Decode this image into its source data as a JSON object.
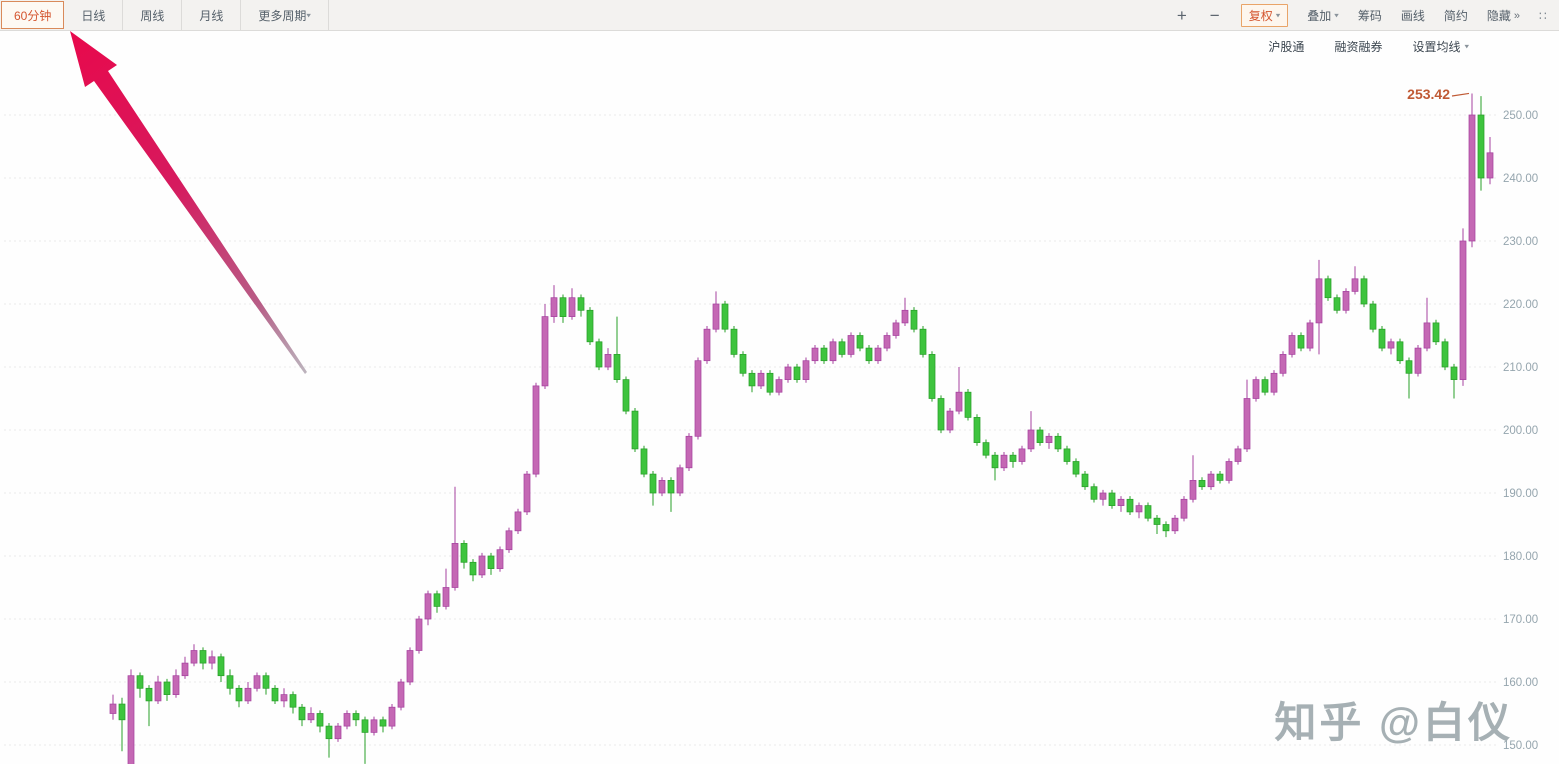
{
  "toolbar": {
    "period_tabs": [
      {
        "label": "60分钟",
        "active": true
      },
      {
        "label": "日线",
        "active": false
      },
      {
        "label": "周线",
        "active": false
      },
      {
        "label": "月线",
        "active": false
      },
      {
        "label": "更多周期",
        "active": false,
        "caret": true
      }
    ],
    "zoom_in_label": "+",
    "zoom_out_label": "−",
    "right_buttons": [
      {
        "label": "复权",
        "caret": true,
        "highlighted": true
      },
      {
        "label": "叠加",
        "caret": true
      },
      {
        "label": "筹码"
      },
      {
        "label": "画线"
      },
      {
        "label": "简约"
      },
      {
        "label": "隐藏",
        "suffix_icon": "double_arrow"
      }
    ],
    "truncated_glyph": "∷"
  },
  "subbar": {
    "links": [
      {
        "label": "沪股通"
      },
      {
        "label": "融资融券"
      },
      {
        "label": "设置均线",
        "caret": true
      }
    ]
  },
  "icons": {
    "dropdown_caret": "▾",
    "double_arrow": "»"
  },
  "watermark": "知乎 @白仪",
  "annotation": {
    "type": "arrow",
    "points_to": "60分钟",
    "color": "#e8094c"
  },
  "chart_data": {
    "type": "candlestick",
    "period": "60分钟",
    "latest_price_label": "253.42",
    "latest_price_value": 253.42,
    "legend_position": "none",
    "y_axis": {
      "side": "right",
      "grid": true,
      "tick_labels": [
        "250.00",
        "240.00",
        "230.00",
        "220.00",
        "210.00",
        "200.00",
        "190.00",
        "180.00",
        "170.00",
        "160.00",
        "150.00"
      ],
      "tick_values": [
        250,
        240,
        230,
        220,
        210,
        200,
        190,
        180,
        170,
        160,
        150
      ],
      "range": [
        148,
        255.8
      ]
    },
    "colors": {
      "up_fill": "#c468b4",
      "up_stroke": "#a743a0",
      "down_fill": "#3ec43e",
      "down_stroke": "#28a028",
      "grid": "#ebebeb",
      "axis_text": "#95a5ae",
      "price_label": "#c05a35",
      "accent_orange": "#d4552f"
    },
    "candles": [
      [
        155,
        158,
        154,
        156.5
      ],
      [
        156.5,
        157.5,
        149,
        154
      ],
      [
        145,
        162,
        143.5,
        161
      ],
      [
        161,
        161.5,
        157.5,
        159
      ],
      [
        159,
        159.5,
        153,
        157
      ],
      [
        157,
        161,
        156.5,
        160
      ],
      [
        160,
        160.5,
        157,
        158
      ],
      [
        158,
        162,
        157.5,
        161
      ],
      [
        161,
        164,
        160.5,
        163
      ],
      [
        163,
        166,
        162.5,
        165
      ],
      [
        165,
        165.5,
        162,
        163
      ],
      [
        163,
        165,
        162,
        164
      ],
      [
        164,
        164.5,
        160,
        161
      ],
      [
        161,
        162,
        158,
        159
      ],
      [
        159,
        159.5,
        156,
        157
      ],
      [
        157,
        160,
        156.5,
        159
      ],
      [
        159,
        161.5,
        158.5,
        161
      ],
      [
        161,
        161.5,
        158,
        159
      ],
      [
        159,
        159.5,
        156.5,
        157
      ],
      [
        157,
        159,
        156,
        158
      ],
      [
        158,
        158.5,
        155,
        156
      ],
      [
        156,
        156.5,
        153,
        154
      ],
      [
        154,
        156,
        153.5,
        155
      ],
      [
        155,
        155.5,
        152,
        153
      ],
      [
        153,
        153.5,
        148,
        151
      ],
      [
        151,
        153.5,
        150.5,
        153
      ],
      [
        153,
        155.5,
        152.5,
        155
      ],
      [
        155,
        155.5,
        153,
        154
      ],
      [
        154,
        154.5,
        147,
        152
      ],
      [
        152,
        154.5,
        151.5,
        154
      ],
      [
        154,
        154.5,
        152,
        153
      ],
      [
        153,
        156.5,
        152.5,
        156
      ],
      [
        156,
        160.5,
        155.5,
        160
      ],
      [
        160,
        165.5,
        159.5,
        165
      ],
      [
        165,
        170.5,
        164.5,
        170
      ],
      [
        170,
        174.5,
        169,
        174
      ],
      [
        174,
        174.5,
        171,
        172
      ],
      [
        172,
        178,
        171.5,
        175
      ],
      [
        175,
        191,
        174.5,
        182
      ],
      [
        182,
        182.5,
        178,
        179
      ],
      [
        179,
        179.5,
        176,
        177
      ],
      [
        177,
        180.5,
        176.5,
        180
      ],
      [
        180,
        180.5,
        177,
        178
      ],
      [
        178,
        181.5,
        177.5,
        181
      ],
      [
        181,
        184.5,
        180.5,
        184
      ],
      [
        184,
        187.5,
        183.5,
        187
      ],
      [
        187,
        193.5,
        186.5,
        193
      ],
      [
        193,
        207.5,
        192.5,
        207
      ],
      [
        207,
        220,
        206.5,
        218
      ],
      [
        218,
        223,
        217,
        221
      ],
      [
        221,
        221.5,
        217,
        218
      ],
      [
        218,
        222.5,
        217.5,
        221
      ],
      [
        221,
        221.5,
        218,
        219
      ],
      [
        219,
        219.5,
        213.5,
        214
      ],
      [
        214,
        214.5,
        209.5,
        210
      ],
      [
        210,
        213,
        209.5,
        212
      ],
      [
        212,
        218,
        207.5,
        208
      ],
      [
        208,
        208.5,
        202.5,
        203
      ],
      [
        203,
        203.5,
        196.5,
        197
      ],
      [
        197,
        197.5,
        192.5,
        193
      ],
      [
        193,
        193.5,
        188,
        190
      ],
      [
        190,
        192.5,
        189.5,
        192
      ],
      [
        192,
        192.5,
        187,
        190
      ],
      [
        190,
        194.5,
        189.5,
        194
      ],
      [
        194,
        199.5,
        193.5,
        199
      ],
      [
        199,
        211.5,
        198.5,
        211
      ],
      [
        211,
        216.5,
        210.5,
        216
      ],
      [
        216,
        222,
        215.5,
        220
      ],
      [
        220,
        220.5,
        215.5,
        216
      ],
      [
        216,
        216.5,
        211.5,
        212
      ],
      [
        212,
        212.5,
        208.5,
        209
      ],
      [
        209,
        209.5,
        206,
        207
      ],
      [
        207,
        209.5,
        206.5,
        209
      ],
      [
        209,
        209.5,
        205.5,
        206
      ],
      [
        206,
        208.5,
        205.5,
        208
      ],
      [
        208,
        210.5,
        207.5,
        210
      ],
      [
        210,
        210.5,
        207.5,
        208
      ],
      [
        208,
        211.5,
        207.5,
        211
      ],
      [
        211,
        213.5,
        210.5,
        213
      ],
      [
        213,
        213.5,
        210.5,
        211
      ],
      [
        211,
        214.5,
        210.5,
        214
      ],
      [
        214,
        214.5,
        211.5,
        212
      ],
      [
        212,
        215.5,
        211.5,
        215
      ],
      [
        215,
        215.5,
        212.5,
        213
      ],
      [
        213,
        213.5,
        210.5,
        211
      ],
      [
        211,
        213.5,
        210.5,
        213
      ],
      [
        213,
        215.5,
        212.5,
        215
      ],
      [
        215,
        217.5,
        214.5,
        217
      ],
      [
        217,
        221,
        216.5,
        219
      ],
      [
        219,
        219.5,
        215.5,
        216
      ],
      [
        216,
        216.5,
        211.5,
        212
      ],
      [
        212,
        212.5,
        204.5,
        205
      ],
      [
        205,
        205.5,
        199.5,
        200
      ],
      [
        200,
        203.5,
        199.5,
        203
      ],
      [
        203,
        210,
        202.5,
        206
      ],
      [
        206,
        206.5,
        201.5,
        202
      ],
      [
        202,
        202.5,
        197.5,
        198
      ],
      [
        198,
        198.5,
        195.5,
        196
      ],
      [
        196,
        196.5,
        192,
        194
      ],
      [
        194,
        196.5,
        193.5,
        196
      ],
      [
        196,
        196.5,
        194,
        195
      ],
      [
        195,
        197.5,
        194.5,
        197
      ],
      [
        197,
        203,
        196.5,
        200
      ],
      [
        200,
        200.5,
        197.5,
        198
      ],
      [
        198,
        199.5,
        197,
        199
      ],
      [
        199,
        199.5,
        196.5,
        197
      ],
      [
        197,
        197.5,
        194.5,
        195
      ],
      [
        195,
        195.5,
        192.5,
        193
      ],
      [
        193,
        193.5,
        190.5,
        191
      ],
      [
        191,
        191.5,
        188.5,
        189
      ],
      [
        189,
        190.5,
        188,
        190
      ],
      [
        190,
        190.5,
        187.5,
        188
      ],
      [
        188,
        189.5,
        187,
        189
      ],
      [
        189,
        189.5,
        186.5,
        187
      ],
      [
        187,
        188.5,
        186,
        188
      ],
      [
        188,
        188.5,
        185.5,
        186
      ],
      [
        186,
        186.5,
        183.5,
        185
      ],
      [
        185,
        185.5,
        183,
        184
      ],
      [
        184,
        186.5,
        183.5,
        186
      ],
      [
        186,
        189.5,
        185.5,
        189
      ],
      [
        189,
        196,
        188.5,
        192
      ],
      [
        192,
        192.5,
        190.5,
        191
      ],
      [
        191,
        193.5,
        190.5,
        193
      ],
      [
        193,
        193.5,
        191.5,
        192
      ],
      [
        192,
        195.5,
        191.5,
        195
      ],
      [
        195,
        197.5,
        194.5,
        197
      ],
      [
        197,
        208,
        196.5,
        205
      ],
      [
        205,
        208.5,
        204.5,
        208
      ],
      [
        208,
        208.5,
        205.5,
        206
      ],
      [
        206,
        209.5,
        205.5,
        209
      ],
      [
        209,
        212.5,
        208.5,
        212
      ],
      [
        212,
        215.5,
        211.5,
        215
      ],
      [
        215,
        215.5,
        212.5,
        213
      ],
      [
        213,
        217.5,
        212.5,
        217
      ],
      [
        217,
        227,
        212,
        224
      ],
      [
        224,
        224.5,
        220.5,
        221
      ],
      [
        221,
        221.5,
        218.5,
        219
      ],
      [
        219,
        222.5,
        218.5,
        222
      ],
      [
        222,
        226,
        221.5,
        224
      ],
      [
        224,
        224.5,
        219.5,
        220
      ],
      [
        220,
        220.5,
        215.5,
        216
      ],
      [
        216,
        216.5,
        212.5,
        213
      ],
      [
        213,
        214.5,
        212,
        214
      ],
      [
        214,
        214.5,
        210.5,
        211
      ],
      [
        211,
        211.5,
        205,
        209
      ],
      [
        209,
        213.5,
        208.5,
        213
      ],
      [
        213,
        221,
        212.5,
        217
      ],
      [
        217,
        217.5,
        213.5,
        214
      ],
      [
        214,
        214.5,
        209.5,
        210
      ],
      [
        210,
        210.5,
        205,
        208
      ],
      [
        208,
        232,
        207,
        230
      ],
      [
        230,
        253.42,
        229,
        250
      ],
      [
        250,
        253,
        238,
        240
      ],
      [
        240,
        246.5,
        239,
        244
      ]
    ]
  }
}
